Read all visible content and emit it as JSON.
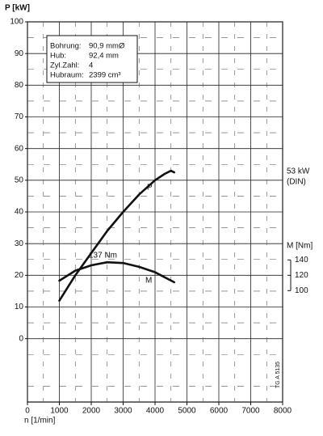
{
  "chart_data": {
    "type": "line",
    "y_label": "P [kW]",
    "x_label": "n [1/min]",
    "y2_label": "M [Nm]",
    "xlim": [
      0,
      8000
    ],
    "xticks": [
      0,
      1000,
      2000,
      3000,
      4000,
      5000,
      6000,
      7000,
      8000
    ],
    "ylim": [
      -20,
      100
    ],
    "yticks": [
      0,
      10,
      20,
      30,
      40,
      50,
      60,
      70,
      80,
      90,
      100
    ],
    "y2lim": [
      -45,
      450
    ],
    "y2ticks": [
      100,
      120,
      140
    ],
    "grid": true,
    "series": [
      {
        "name": "P",
        "color": "#111111",
        "x": [
          1000,
          1500,
          2000,
          2500,
          3000,
          3500,
          4000,
          4300,
          4500,
          4600
        ],
        "values": [
          12,
          20,
          27,
          34,
          40,
          45.5,
          50,
          52,
          53,
          52.5
        ]
      },
      {
        "name": "M",
        "color": "#111111",
        "axis": "y2",
        "x": [
          1000,
          1500,
          2000,
          2500,
          3000,
          3500,
          4000,
          4600
        ],
        "values": [
          113,
          126,
          133,
          137,
          136,
          131,
          124,
          111
        ]
      }
    ],
    "annotations": [
      "53 kW",
      "(DIN)",
      "137 Nm"
    ],
    "specs": [
      [
        "Bohrung:",
        "90,9 mmØ"
      ],
      [
        "Hub:",
        "92,4 mm"
      ],
      [
        "Zyl.Zahl:",
        "4"
      ],
      [
        "Hubraum:",
        "2399 cm³"
      ]
    ],
    "note": "TG A 5135"
  }
}
